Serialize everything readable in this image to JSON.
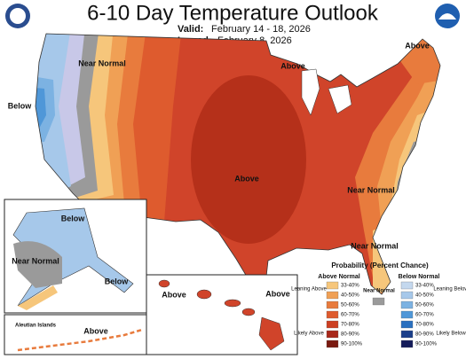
{
  "header": {
    "title": "6-10 Day Temperature Outlook",
    "valid_label": "Valid:",
    "valid": "February 14 - 18, 2026",
    "issued_label": "Issued:",
    "issued": "February 8, 2026"
  },
  "map_labels": [
    "Near Normal",
    "Above",
    "Above",
    "Below",
    "Above",
    "Near Normal",
    "Near Normal",
    "Below",
    "Near Normal",
    "Below",
    "Above",
    "Above",
    "Aleutian Islands",
    "Above"
  ],
  "legend": {
    "title": "Probability (Percent Chance)",
    "above": {
      "title": "Above Normal",
      "leaning": "Leaning Above",
      "likely": "Likely Above",
      "bins": [
        {
          "label": "33-40%",
          "color": "#f6c67b"
        },
        {
          "label": "40-50%",
          "color": "#f0a055"
        },
        {
          "label": "50-60%",
          "color": "#e87b3d"
        },
        {
          "label": "60-70%",
          "color": "#de5b2e"
        },
        {
          "label": "70-80%",
          "color": "#cc3f22"
        },
        {
          "label": "80-90%",
          "color": "#a8281a"
        },
        {
          "label": "90-100%",
          "color": "#7a1a10"
        }
      ]
    },
    "near": {
      "title": "Near Normal",
      "color": "#9a9a9a"
    },
    "below": {
      "title": "Below Normal",
      "leaning": "Leaning Below",
      "likely": "Likely Below",
      "bins": [
        {
          "label": "33-40%",
          "color": "#c4d8ee"
        },
        {
          "label": "40-50%",
          "color": "#a6c8ea"
        },
        {
          "label": "50-60%",
          "color": "#7cb2e2"
        },
        {
          "label": "60-70%",
          "color": "#4f97d8"
        },
        {
          "label": "70-80%",
          "color": "#2a70bf"
        },
        {
          "label": "80-90%",
          "color": "#1b3f8a"
        },
        {
          "label": "90-100%",
          "color": "#141c5a"
        }
      ]
    }
  }
}
